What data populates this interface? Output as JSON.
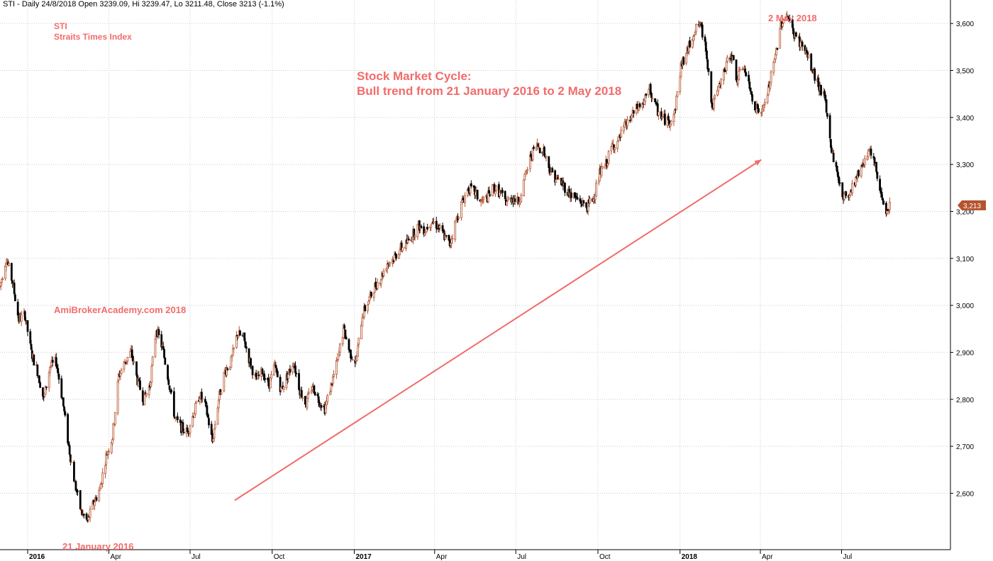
{
  "header": "STI - Daily 24/8/2018 Open 3239.09, Hi 3239.47, Lo 3211.48, Close 3213 (-1.1%)",
  "symbol": "STI",
  "symbol_name": "Straits Times Index",
  "annotation_title": "Stock Market Cycle:",
  "annotation_subtitle": "Bull trend from 21 January 2016 to 2 May 2018",
  "watermark": "AmiBrokerAcademy.com  2018",
  "low_label": "21 January 2016",
  "high_label": "2 May 2018",
  "last_price_badge": "3,213",
  "colors": {
    "up": "#b5532e",
    "down": "#000000",
    "accent": "#f26b6b",
    "grid": "#cccccc",
    "badge": "#b5532e"
  },
  "chart_data": {
    "type": "line",
    "subtype": "candlestick",
    "ylim": [
      2480,
      3650
    ],
    "yticks": [
      "2,600",
      "2,700",
      "2,800",
      "2,900",
      "3,000",
      "3,100",
      "3,200",
      "3,300",
      "3,400",
      "3,500",
      "3,600"
    ],
    "ytick_values": [
      2600,
      2700,
      2800,
      2900,
      3000,
      3100,
      3200,
      3300,
      3400,
      3500,
      3600
    ],
    "xticks": [
      {
        "label": "2016",
        "date": "2016-01-01",
        "bold": true
      },
      {
        "label": "Apr",
        "date": "2016-04-01"
      },
      {
        "label": "Jul",
        "date": "2016-07-01"
      },
      {
        "label": "Oct",
        "date": "2016-10-01"
      },
      {
        "label": "2017",
        "date": "2017-01-01",
        "bold": true
      },
      {
        "label": "Apr",
        "date": "2017-04-01"
      },
      {
        "label": "Jul",
        "date": "2017-07-01"
      },
      {
        "label": "Oct",
        "date": "2017-10-01"
      },
      {
        "label": "2018",
        "date": "2018-01-01",
        "bold": true
      },
      {
        "label": "Apr",
        "date": "2018-04-01"
      },
      {
        "label": "Jul",
        "date": "2018-07-01"
      }
    ],
    "xlim": [
      "2015-12-01",
      "2018-10-31"
    ],
    "series": [
      {
        "values": [
          [
            "2015-12-01",
            3040
          ],
          [
            "2015-12-08",
            3100
          ],
          [
            "2015-12-15",
            3050
          ],
          [
            "2015-12-22",
            2970
          ],
          [
            "2015-12-29",
            2980
          ],
          [
            "2016-01-05",
            2900
          ],
          [
            "2016-01-12",
            2860
          ],
          [
            "2016-01-19",
            2800
          ],
          [
            "2016-01-26",
            2870
          ],
          [
            "2016-02-02",
            2880
          ],
          [
            "2016-02-09",
            2800
          ],
          [
            "2016-02-16",
            2700
          ],
          [
            "2016-02-23",
            2620
          ],
          [
            "2016-03-01",
            2560
          ],
          [
            "2016-03-08",
            2540
          ],
          [
            "2016-03-15",
            2580
          ],
          [
            "2016-03-22",
            2610
          ],
          [
            "2016-03-29",
            2680
          ],
          [
            "2016-04-05",
            2720
          ],
          [
            "2016-04-12",
            2850
          ],
          [
            "2016-04-19",
            2880
          ],
          [
            "2016-04-26",
            2900
          ],
          [
            "2016-05-03",
            2840
          ],
          [
            "2016-05-10",
            2800
          ],
          [
            "2016-05-17",
            2830
          ],
          [
            "2016-05-24",
            2950
          ],
          [
            "2016-05-31",
            2910
          ],
          [
            "2016-06-07",
            2840
          ],
          [
            "2016-06-14",
            2760
          ],
          [
            "2016-06-21",
            2740
          ],
          [
            "2016-06-28",
            2730
          ],
          [
            "2016-07-05",
            2770
          ],
          [
            "2016-07-12",
            2810
          ],
          [
            "2016-07-19",
            2780
          ],
          [
            "2016-07-26",
            2710
          ],
          [
            "2016-08-02",
            2800
          ],
          [
            "2016-08-09",
            2860
          ],
          [
            "2016-08-16",
            2880
          ],
          [
            "2016-08-23",
            2940
          ],
          [
            "2016-08-30",
            2930
          ],
          [
            "2016-09-06",
            2880
          ],
          [
            "2016-09-13",
            2840
          ],
          [
            "2016-09-20",
            2860
          ],
          [
            "2016-09-27",
            2830
          ],
          [
            "2016-10-04",
            2870
          ],
          [
            "2016-10-11",
            2820
          ],
          [
            "2016-10-18",
            2850
          ],
          [
            "2016-10-25",
            2880
          ],
          [
            "2016-11-01",
            2820
          ],
          [
            "2016-11-08",
            2790
          ],
          [
            "2016-11-15",
            2830
          ],
          [
            "2016-11-22",
            2800
          ],
          [
            "2016-11-29",
            2780
          ],
          [
            "2016-12-06",
            2830
          ],
          [
            "2016-12-13",
            2880
          ],
          [
            "2016-12-20",
            2950
          ],
          [
            "2016-12-27",
            2900
          ],
          [
            "2017-01-03",
            2880
          ],
          [
            "2017-01-10",
            2980
          ],
          [
            "2017-01-17",
            3010
          ],
          [
            "2017-01-24",
            3040
          ],
          [
            "2017-01-31",
            3060
          ],
          [
            "2017-02-07",
            3090
          ],
          [
            "2017-02-14",
            3100
          ],
          [
            "2017-02-21",
            3120
          ],
          [
            "2017-02-28",
            3130
          ],
          [
            "2017-03-07",
            3150
          ],
          [
            "2017-03-14",
            3170
          ],
          [
            "2017-03-21",
            3160
          ],
          [
            "2017-03-28",
            3180
          ],
          [
            "2017-04-04",
            3170
          ],
          [
            "2017-04-11",
            3150
          ],
          [
            "2017-04-18",
            3130
          ],
          [
            "2017-04-25",
            3180
          ],
          [
            "2017-05-02",
            3220
          ],
          [
            "2017-05-09",
            3250
          ],
          [
            "2017-05-16",
            3240
          ],
          [
            "2017-05-23",
            3220
          ],
          [
            "2017-05-30",
            3230
          ],
          [
            "2017-06-06",
            3250
          ],
          [
            "2017-06-13",
            3240
          ],
          [
            "2017-06-20",
            3220
          ],
          [
            "2017-06-27",
            3230
          ],
          [
            "2017-07-04",
            3220
          ],
          [
            "2017-07-11",
            3270
          ],
          [
            "2017-07-18",
            3320
          ],
          [
            "2017-07-25",
            3340
          ],
          [
            "2017-08-01",
            3330
          ],
          [
            "2017-08-08",
            3290
          ],
          [
            "2017-08-15",
            3270
          ],
          [
            "2017-08-22",
            3260
          ],
          [
            "2017-08-29",
            3240
          ],
          [
            "2017-09-05",
            3230
          ],
          [
            "2017-09-12",
            3220
          ],
          [
            "2017-09-19",
            3210
          ],
          [
            "2017-09-26",
            3230
          ],
          [
            "2017-10-03",
            3280
          ],
          [
            "2017-10-10",
            3300
          ],
          [
            "2017-10-17",
            3340
          ],
          [
            "2017-10-24",
            3350
          ],
          [
            "2017-10-31",
            3380
          ],
          [
            "2017-11-07",
            3400
          ],
          [
            "2017-11-14",
            3420
          ],
          [
            "2017-11-21",
            3430
          ],
          [
            "2017-11-28",
            3460
          ],
          [
            "2017-12-05",
            3420
          ],
          [
            "2017-12-12",
            3400
          ],
          [
            "2017-12-19",
            3390
          ],
          [
            "2017-12-26",
            3410
          ],
          [
            "2018-01-02",
            3510
          ],
          [
            "2018-01-09",
            3540
          ],
          [
            "2018-01-16",
            3580
          ],
          [
            "2018-01-23",
            3600
          ],
          [
            "2018-01-30",
            3550
          ],
          [
            "2018-02-06",
            3420
          ],
          [
            "2018-02-13",
            3460
          ],
          [
            "2018-02-20",
            3500
          ],
          [
            "2018-02-27",
            3540
          ],
          [
            "2018-03-06",
            3480
          ],
          [
            "2018-03-13",
            3510
          ],
          [
            "2018-03-20",
            3460
          ],
          [
            "2018-03-27",
            3420
          ],
          [
            "2018-04-03",
            3410
          ],
          [
            "2018-04-10",
            3460
          ],
          [
            "2018-04-17",
            3520
          ],
          [
            "2018-04-24",
            3600
          ],
          [
            "2018-05-01",
            3620
          ],
          [
            "2018-05-08",
            3580
          ],
          [
            "2018-05-15",
            3560
          ],
          [
            "2018-05-22",
            3540
          ],
          [
            "2018-05-29",
            3500
          ],
          [
            "2018-06-05",
            3470
          ],
          [
            "2018-06-12",
            3440
          ],
          [
            "2018-06-19",
            3340
          ],
          [
            "2018-06-26",
            3280
          ],
          [
            "2018-07-03",
            3230
          ],
          [
            "2018-07-10",
            3240
          ],
          [
            "2018-07-17",
            3270
          ],
          [
            "2018-07-24",
            3300
          ],
          [
            "2018-07-31",
            3330
          ],
          [
            "2018-08-07",
            3300
          ],
          [
            "2018-08-14",
            3240
          ],
          [
            "2018-08-21",
            3200
          ],
          [
            "2018-08-24",
            3213
          ]
        ]
      }
    ],
    "trendline": {
      "from": [
        "2016-08-20",
        2585
      ],
      "to": [
        "2018-04-02",
        3310
      ]
    },
    "last_close": 3213,
    "grid": true,
    "legend": "none"
  }
}
